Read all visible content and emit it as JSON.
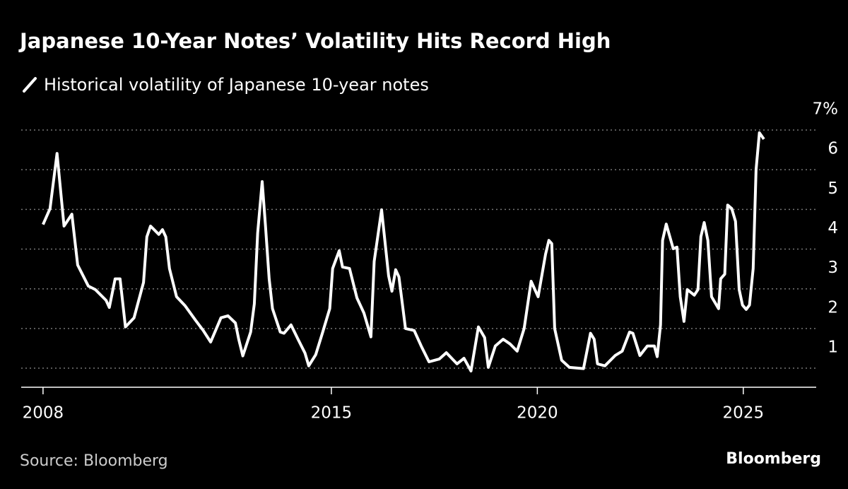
{
  "chart_data": {
    "type": "line",
    "title": "Japanese 10-Year Notes’ Volatility Hits Record High",
    "source": "Source: Bloomberg",
    "brand": "Bloomberg",
    "x": [
      2008.0,
      2008.17,
      2008.34,
      2008.51,
      2008.7,
      2008.84,
      2009.1,
      2009.27,
      2009.53,
      2009.61,
      2009.75,
      2009.87,
      2010.0,
      2010.21,
      2010.44,
      2010.52,
      2010.61,
      2010.81,
      2010.9,
      2010.98,
      2011.07,
      2011.24,
      2011.45,
      2011.7,
      2011.89,
      2012.07,
      2012.32,
      2012.49,
      2012.67,
      2012.75,
      2012.85,
      2013.04,
      2013.13,
      2013.21,
      2013.32,
      2013.4,
      2013.49,
      2013.57,
      2013.76,
      2013.85,
      2014.02,
      2014.19,
      2014.36,
      2014.45,
      2014.62,
      2014.79,
      2014.96,
      2015.03,
      2015.19,
      2015.27,
      2015.44,
      2015.62,
      2015.79,
      2015.96,
      2016.04,
      2016.22,
      2016.39,
      2016.47,
      2016.56,
      2016.64,
      2016.8,
      2017.01,
      2017.18,
      2017.37,
      2017.62,
      2017.79,
      2018.05,
      2018.22,
      2018.39,
      2018.57,
      2018.72,
      2018.81,
      2018.98,
      2019.17,
      2019.34,
      2019.51,
      2019.68,
      2019.85,
      2020.02,
      2020.2,
      2020.28,
      2020.35,
      2020.42,
      2020.59,
      2020.78,
      2021.12,
      2021.29,
      2021.38,
      2021.46,
      2021.64,
      2021.89,
      2022.06,
      2022.24,
      2022.32,
      2022.49,
      2022.67,
      2022.84,
      2022.91,
      2022.99,
      2023.04,
      2023.13,
      2023.3,
      2023.39,
      2023.47,
      2023.56,
      2023.64,
      2023.81,
      2023.9,
      2023.97,
      2024.05,
      2024.14,
      2024.23,
      2024.4,
      2024.45,
      2024.55,
      2024.62,
      2024.72,
      2024.81,
      2024.9,
      2024.98,
      2025.07,
      2025.15,
      2025.24,
      2025.31,
      2025.39,
      2025.5
    ],
    "series": [
      {
        "name": "Historical volatility of Japanese 10-year notes",
        "color": "#ffffff",
        "values": [
          4.62,
          5.02,
          6.41,
          4.58,
          4.88,
          3.6,
          3.07,
          2.98,
          2.71,
          2.53,
          3.25,
          3.25,
          2.04,
          2.27,
          3.16,
          4.31,
          4.58,
          4.37,
          4.49,
          4.31,
          3.51,
          2.8,
          2.57,
          2.21,
          1.95,
          1.66,
          2.27,
          2.32,
          2.14,
          1.73,
          1.31,
          1.91,
          2.62,
          4.4,
          5.7,
          4.58,
          3.25,
          2.5,
          1.91,
          1.88,
          2.09,
          1.73,
          1.38,
          1.06,
          1.34,
          1.91,
          2.5,
          3.51,
          3.96,
          3.55,
          3.51,
          2.77,
          2.39,
          1.79,
          3.69,
          4.99,
          3.33,
          2.94,
          3.48,
          3.3,
          2.0,
          1.95,
          1.56,
          1.16,
          1.23,
          1.39,
          1.11,
          1.25,
          0.93,
          2.04,
          1.77,
          1.02,
          1.56,
          1.73,
          1.61,
          1.43,
          2.0,
          3.19,
          2.8,
          3.87,
          4.22,
          4.14,
          2.0,
          1.2,
          1.02,
          0.99,
          1.88,
          1.73,
          1.11,
          1.06,
          1.32,
          1.43,
          1.91,
          1.88,
          1.32,
          1.56,
          1.56,
          1.29,
          2.09,
          4.22,
          4.63,
          4.01,
          4.05,
          2.8,
          2.18,
          2.98,
          2.84,
          2.98,
          4.31,
          4.67,
          4.22,
          2.8,
          2.5,
          3.25,
          3.37,
          5.11,
          5.02,
          4.7,
          2.98,
          2.59,
          2.48,
          2.59,
          3.51,
          6.0,
          6.93,
          6.77
        ]
      }
    ],
    "xlim": [
      2007.47,
      2026.77
    ],
    "xticks": [
      2008,
      2015,
      2020,
      2025
    ],
    "ylim": [
      0.52,
      7
    ],
    "yticks": [
      1,
      2,
      3,
      4,
      5,
      6,
      {
        "value": 7,
        "label": "7%"
      }
    ],
    "grid": true
  }
}
